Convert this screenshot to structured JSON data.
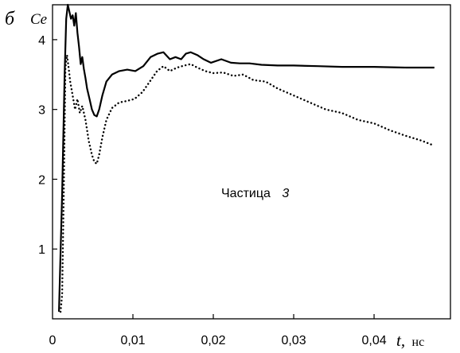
{
  "panel_label": "б",
  "chart_data": {
    "type": "line",
    "ylabel": "Ce",
    "xlabel_var": "t,",
    "xlabel_unit": "нс",
    "annotation": {
      "text": "Частица",
      "number": "3"
    },
    "xlim": [
      0,
      0.0495
    ],
    "ylim": [
      0,
      4.5
    ],
    "x_ticks": [
      0,
      0.01,
      0.02,
      0.03,
      0.04
    ],
    "x_tick_labels": [
      "0",
      "0,01",
      "0,02",
      "0,03",
      "0,04"
    ],
    "y_ticks": [
      1,
      2,
      3,
      4
    ],
    "y_tick_labels": [
      "1",
      "2",
      "3",
      "4"
    ],
    "grid": false,
    "series": [
      {
        "style": "solid",
        "color": "#000000",
        "points": [
          [
            0.0008,
            0.1
          ],
          [
            0.0012,
            1.8
          ],
          [
            0.0015,
            3.5
          ],
          [
            0.0017,
            4.3
          ],
          [
            0.0019,
            4.5
          ],
          [
            0.0021,
            4.4
          ],
          [
            0.0023,
            4.3
          ],
          [
            0.0025,
            4.35
          ],
          [
            0.0027,
            4.2
          ],
          [
            0.0029,
            4.38
          ],
          [
            0.0031,
            4.1
          ],
          [
            0.0033,
            3.9
          ],
          [
            0.0035,
            3.65
          ],
          [
            0.0037,
            3.75
          ],
          [
            0.0039,
            3.58
          ],
          [
            0.0041,
            3.45
          ],
          [
            0.0043,
            3.3
          ],
          [
            0.0046,
            3.15
          ],
          [
            0.0049,
            3.0
          ],
          [
            0.0052,
            2.92
          ],
          [
            0.0055,
            2.9
          ],
          [
            0.0058,
            3.0
          ],
          [
            0.0062,
            3.2
          ],
          [
            0.0067,
            3.4
          ],
          [
            0.0074,
            3.5
          ],
          [
            0.0083,
            3.55
          ],
          [
            0.0093,
            3.57
          ],
          [
            0.0103,
            3.55
          ],
          [
            0.0113,
            3.62
          ],
          [
            0.0122,
            3.75
          ],
          [
            0.0131,
            3.8
          ],
          [
            0.0138,
            3.82
          ],
          [
            0.0146,
            3.72
          ],
          [
            0.0153,
            3.75
          ],
          [
            0.016,
            3.72
          ],
          [
            0.0166,
            3.8
          ],
          [
            0.0172,
            3.82
          ],
          [
            0.018,
            3.78
          ],
          [
            0.0188,
            3.72
          ],
          [
            0.0197,
            3.67
          ],
          [
            0.021,
            3.72
          ],
          [
            0.0222,
            3.67
          ],
          [
            0.0233,
            3.66
          ],
          [
            0.0245,
            3.66
          ],
          [
            0.026,
            3.64
          ],
          [
            0.028,
            3.63
          ],
          [
            0.03,
            3.63
          ],
          [
            0.033,
            3.62
          ],
          [
            0.036,
            3.61
          ],
          [
            0.04,
            3.61
          ],
          [
            0.044,
            3.6
          ],
          [
            0.0475,
            3.6
          ]
        ]
      },
      {
        "style": "dotted",
        "color": "#000000",
        "points": [
          [
            0.001,
            0.1
          ],
          [
            0.0012,
            0.35
          ],
          [
            0.0014,
            1.8
          ],
          [
            0.0016,
            3.6
          ],
          [
            0.0018,
            3.78
          ],
          [
            0.002,
            3.6
          ],
          [
            0.0022,
            3.4
          ],
          [
            0.0025,
            3.2
          ],
          [
            0.0028,
            3.0
          ],
          [
            0.0031,
            3.15
          ],
          [
            0.0034,
            2.95
          ],
          [
            0.0037,
            3.05
          ],
          [
            0.0041,
            2.85
          ],
          [
            0.0045,
            2.55
          ],
          [
            0.0049,
            2.35
          ],
          [
            0.0052,
            2.25
          ],
          [
            0.0055,
            2.22
          ],
          [
            0.0058,
            2.35
          ],
          [
            0.0062,
            2.6
          ],
          [
            0.0067,
            2.85
          ],
          [
            0.0074,
            3.02
          ],
          [
            0.0083,
            3.1
          ],
          [
            0.0092,
            3.12
          ],
          [
            0.0102,
            3.15
          ],
          [
            0.0112,
            3.25
          ],
          [
            0.0121,
            3.4
          ],
          [
            0.013,
            3.55
          ],
          [
            0.0138,
            3.62
          ],
          [
            0.0146,
            3.55
          ],
          [
            0.0155,
            3.6
          ],
          [
            0.0164,
            3.63
          ],
          [
            0.0172,
            3.65
          ],
          [
            0.018,
            3.6
          ],
          [
            0.019,
            3.55
          ],
          [
            0.02,
            3.52
          ],
          [
            0.0212,
            3.53
          ],
          [
            0.0225,
            3.48
          ],
          [
            0.0237,
            3.5
          ],
          [
            0.025,
            3.42
          ],
          [
            0.0265,
            3.4
          ],
          [
            0.028,
            3.3
          ],
          [
            0.03,
            3.2
          ],
          [
            0.032,
            3.1
          ],
          [
            0.034,
            3.0
          ],
          [
            0.036,
            2.95
          ],
          [
            0.038,
            2.85
          ],
          [
            0.04,
            2.8
          ],
          [
            0.042,
            2.7
          ],
          [
            0.044,
            2.62
          ],
          [
            0.046,
            2.55
          ],
          [
            0.0475,
            2.48
          ]
        ]
      }
    ]
  }
}
